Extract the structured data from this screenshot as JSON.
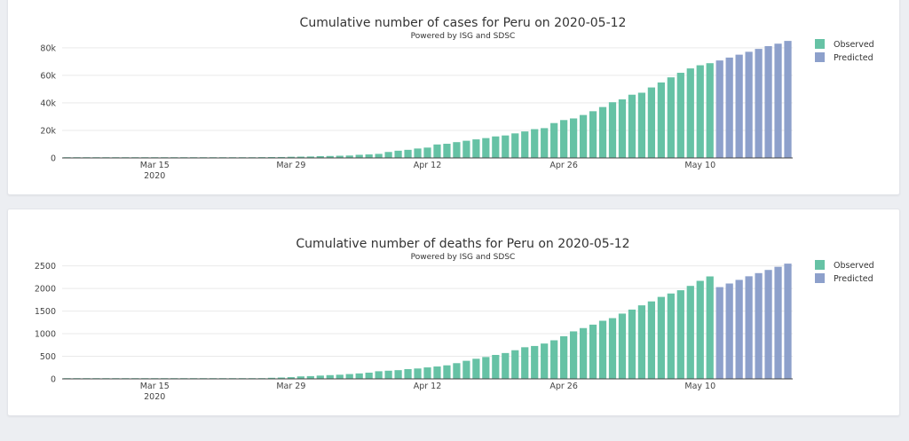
{
  "chart_data": [
    {
      "type": "bar",
      "title": "Cumulative number of cases for Peru on 2020-05-12",
      "subtitle": "Powered by ISG and SDSC",
      "xlabel": "",
      "ylabel": "",
      "x_start": "2020-03-06",
      "x_tick_labels": [
        {
          "label": "Mar 15",
          "sublabel": "2020",
          "day_index": 9
        },
        {
          "label": "Mar 29",
          "sublabel": "",
          "day_index": 23
        },
        {
          "label": "Apr 12",
          "sublabel": "",
          "day_index": 37
        },
        {
          "label": "Apr 26",
          "sublabel": "",
          "day_index": 51
        },
        {
          "label": "May 10",
          "sublabel": "",
          "day_index": 65
        }
      ],
      "ylim": [
        0,
        87000
      ],
      "y_ticks": [
        0,
        20000,
        40000,
        60000,
        80000
      ],
      "y_tick_labels": [
        "0",
        "20k",
        "40k",
        "60k",
        "80k"
      ],
      "legend": "top-right",
      "series": [
        {
          "name": "Observed",
          "color": "#66c2a5",
          "start_index": 0,
          "values": [
            1,
            1,
            6,
            7,
            9,
            11,
            22,
            38,
            43,
            71,
            86,
            117,
            145,
            234,
            263,
            318,
            363,
            395,
            416,
            480,
            580,
            635,
            671,
            852,
            950,
            1065,
            1323,
            1414,
            1595,
            1746,
            2281,
            2561,
            2954,
            4342,
            5256,
            5897,
            6848,
            7519,
            9784,
            10303,
            11475,
            12491,
            13489,
            14420,
            15628,
            16325,
            17837,
            19250,
            20914,
            21648,
            25331,
            27517,
            28699,
            31190,
            33931,
            36976,
            40459,
            42534,
            45928,
            47372,
            51189,
            54817,
            58526,
            61847,
            65015,
            67307,
            68822
          ]
        },
        {
          "name": "Predicted",
          "color": "#8da0cb",
          "start_index": 67,
          "values": [
            70800,
            72900,
            75000,
            77100,
            79200,
            81200,
            83000,
            85000
          ]
        }
      ]
    },
    {
      "type": "bar",
      "title": "Cumulative number of deaths for Peru on 2020-05-12",
      "subtitle": "Powered by ISG and SDSC",
      "xlabel": "",
      "ylabel": "",
      "x_start": "2020-03-06",
      "x_tick_labels": [
        {
          "label": "Mar 15",
          "sublabel": "2020",
          "day_index": 9
        },
        {
          "label": "Mar 29",
          "sublabel": "",
          "day_index": 23
        },
        {
          "label": "Apr 12",
          "sublabel": "",
          "day_index": 37
        },
        {
          "label": "Apr 26",
          "sublabel": "",
          "day_index": 51
        },
        {
          "label": "May 10",
          "sublabel": "",
          "day_index": 65
        }
      ],
      "ylim": [
        0,
        2650
      ],
      "y_ticks": [
        0,
        500,
        1000,
        1500,
        2000,
        2500
      ],
      "y_tick_labels": [
        "0",
        "500",
        "1000",
        "1500",
        "2000",
        "2500"
      ],
      "legend": "top-right",
      "series": [
        {
          "name": "Observed",
          "color": "#66c2a5",
          "start_index": 0,
          "values": [
            0,
            0,
            0,
            0,
            0,
            0,
            0,
            0,
            0,
            0,
            0,
            0,
            0,
            0,
            3,
            5,
            5,
            7,
            9,
            11,
            16,
            24,
            30,
            38,
            55,
            61,
            73,
            83,
            92,
            107,
            121,
            138,
            169,
            181,
            193,
            216,
            230,
            254,
            274,
            300,
            348,
            400,
            445,
            484,
            530,
            572,
            634,
            700,
            728,
            782,
            854,
            943,
            1051,
            1124,
            1200,
            1286,
            1344,
            1444,
            1533,
            1627,
            1714,
            1814,
            1889,
            1961,
            2057,
            2169,
            2267
          ]
        },
        {
          "name": "Predicted",
          "color": "#8da0cb",
          "start_index": 67,
          "values": [
            2030,
            2110,
            2190,
            2270,
            2340,
            2410,
            2480,
            2550
          ]
        }
      ]
    }
  ]
}
